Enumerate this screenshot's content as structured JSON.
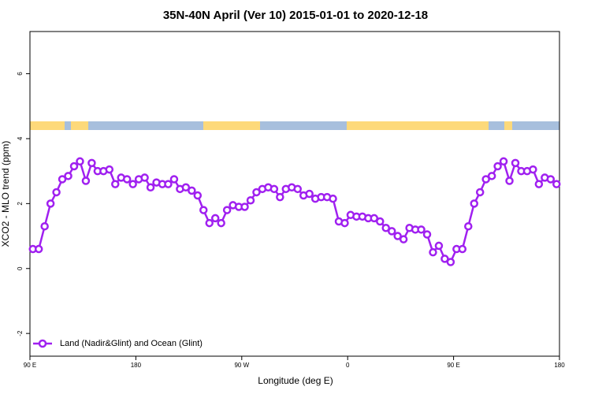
{
  "chart_data": {
    "type": "line",
    "title": "35N-40N April (Ver 10)   2015-01-01 to 2020-12-18",
    "x_label": "Longitude (deg E)",
    "y_label": "XCO2 - MLO trend (ppm)",
    "xlim": [
      90,
      540
    ],
    "ylim": [
      -2.7,
      7.3
    ],
    "xticks": [
      {
        "value": 90,
        "label": "90 E"
      },
      180,
      {
        "value": 270,
        "label": "90 W"
      },
      {
        "value": 360,
        "label": "0"
      },
      {
        "value": 450,
        "label": "90 E"
      },
      {
        "value": 540,
        "label": "180"
      }
    ],
    "yticks": [
      -2,
      0,
      2,
      4,
      6
    ],
    "grid": false,
    "legend_position": "bottom-left",
    "x": [
      92.5,
      97.5,
      102.5,
      107.5,
      112.5,
      117.5,
      122.5,
      127.5,
      132.5,
      137.5,
      142.5,
      147.5,
      152.5,
      157.5,
      162.5,
      167.5,
      172.5,
      177.5,
      182.5,
      187.5,
      192.5,
      197.5,
      202.5,
      207.5,
      212.5,
      217.5,
      222.5,
      227.5,
      232.5,
      237.5,
      242.5,
      247.5,
      252.5,
      257.5,
      262.5,
      267.5,
      272.5,
      277.5,
      282.5,
      287.5,
      292.5,
      297.5,
      302.5,
      307.5,
      312.5,
      317.5,
      322.5,
      327.5,
      332.5,
      337.5,
      342.5,
      347.5,
      352.5,
      357.5,
      362.5,
      367.5,
      372.5,
      377.5,
      382.5,
      387.5,
      392.5,
      397.5,
      402.5,
      407.5,
      412.5,
      417.5,
      422.5,
      427.5,
      432.5,
      437.5,
      442.5,
      447.5,
      452.5,
      457.5,
      462.5,
      467.5,
      472.5,
      477.5,
      482.5,
      487.5,
      492.5,
      497.5,
      502.5,
      507.5,
      512.5,
      517.5,
      522.5,
      527.5,
      532.5,
      537.5
    ],
    "series": [
      {
        "name": "Land (Nadir&Glint) and Ocean (Glint)",
        "color": "#a020f0",
        "values": [
          0.6,
          0.6,
          1.3,
          2.0,
          2.35,
          2.75,
          2.85,
          3.15,
          3.3,
          2.7,
          3.25,
          3.0,
          3.0,
          3.05,
          2.6,
          2.8,
          2.75,
          2.6,
          2.75,
          2.8,
          2.5,
          2.65,
          2.6,
          2.6,
          2.75,
          2.45,
          2.5,
          2.4,
          2.25,
          1.8,
          1.4,
          1.55,
          1.4,
          1.8,
          1.95,
          1.9,
          1.9,
          2.1,
          2.35,
          2.45,
          2.5,
          2.45,
          2.2,
          2.45,
          2.5,
          2.45,
          2.25,
          2.3,
          2.15,
          2.2,
          2.2,
          2.15,
          1.45,
          1.4,
          1.65,
          1.6,
          1.6,
          1.55,
          1.55,
          1.45,
          1.25,
          1.15,
          1.0,
          0.9,
          1.25,
          1.2,
          1.2,
          1.05,
          0.5,
          0.7,
          0.3,
          0.2,
          0.6,
          0.6,
          1.3,
          2.0,
          2.35,
          2.75,
          2.85,
          3.15,
          3.3,
          2.7,
          3.25,
          3.0,
          3.0,
          3.05,
          2.6,
          2.8,
          2.75,
          2.6
        ]
      }
    ]
  }
}
